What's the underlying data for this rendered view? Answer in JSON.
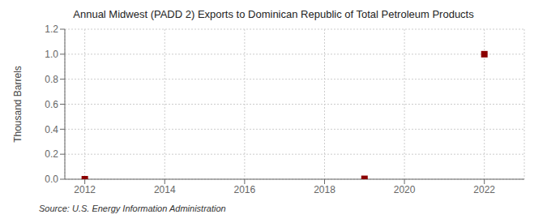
{
  "chart_data": {
    "type": "scatter",
    "title": "Annual Midwest (PADD 2) Exports to Dominican Republic of Total Petroleum Products",
    "y_label": "Thousand Barrels",
    "source": "Source: U.S. Energy Information Administration",
    "x": [
      2012,
      2019,
      2022
    ],
    "values": [
      0.0,
      0.003,
      1.0
    ],
    "color": "#8b0000",
    "marker": "square",
    "xlim": [
      2011.5,
      2023.0
    ],
    "ylim": [
      0.0,
      1.2
    ],
    "xticks": [
      2012,
      2014,
      2016,
      2018,
      2020,
      2022
    ],
    "yticks": [
      {
        "value": 0.0,
        "label": "0.0"
      },
      0.2,
      0.4,
      0.6,
      0.8,
      {
        "value": 1.0,
        "label": "1.0"
      },
      1.2
    ],
    "grid": true
  }
}
